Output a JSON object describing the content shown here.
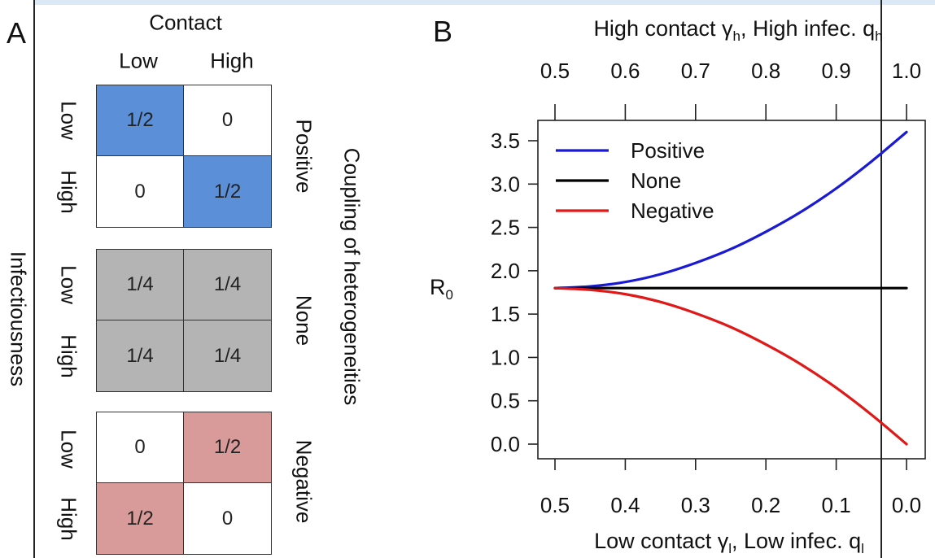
{
  "panel_a": {
    "letter": "A",
    "contact_title": "Contact",
    "col_labels": [
      "Low",
      "High"
    ],
    "row_labels": [
      "Low",
      "High"
    ],
    "left_label": "Infectiousness",
    "right_label": "Coupling of heterogeneities",
    "matrices": [
      {
        "name": "Positive",
        "cells": [
          "1/2",
          "0",
          "0",
          "1/2"
        ],
        "colors": [
          "#5b8fd8",
          "#ffffff",
          "#ffffff",
          "#5b8fd8"
        ]
      },
      {
        "name": "None",
        "cells": [
          "1/4",
          "1/4",
          "1/4",
          "1/4"
        ],
        "colors": [
          "#b4b4b4",
          "#b4b4b4",
          "#b4b4b4",
          "#b4b4b4"
        ]
      },
      {
        "name": "Negative",
        "cells": [
          "0",
          "1/2",
          "1/2",
          "0"
        ],
        "colors": [
          "#ffffff",
          "#d99a9a",
          "#d99a9a",
          "#ffffff"
        ]
      }
    ]
  },
  "panel_b": {
    "letter": "B",
    "top_axis_label": "High contact γ",
    "top_axis_sub": "h",
    "top_axis_label2": ", High infec. q",
    "top_axis_sub2": "h",
    "bottom_axis_label": "Low contact γ",
    "bottom_axis_sub": "l",
    "bottom_axis_label2": ", Low infec. q",
    "bottom_axis_sub2": "l",
    "ylabel": "R",
    "ylabel_sub": "0"
  },
  "chart_data": {
    "type": "line",
    "x_bottom_ticks": [
      "0.5",
      "0.4",
      "0.3",
      "0.2",
      "0.1",
      "0.0"
    ],
    "x_top_ticks": [
      "0.5",
      "0.6",
      "0.7",
      "0.8",
      "0.9",
      "1.0"
    ],
    "y_ticks": [
      "0.0",
      "0.5",
      "1.0",
      "1.5",
      "2.0",
      "2.5",
      "3.0",
      "3.5"
    ],
    "xlim": [
      0.5,
      0.0
    ],
    "ylim": [
      -0.08,
      3.72
    ],
    "x": [
      0.5,
      0.45,
      0.4,
      0.35,
      0.3,
      0.25,
      0.2,
      0.15,
      0.1,
      0.05,
      0.0
    ],
    "series": [
      {
        "name": "Positive",
        "color": "#1a1ad6",
        "values": [
          1.8,
          1.82,
          1.87,
          1.96,
          2.09,
          2.25,
          2.45,
          2.68,
          2.95,
          3.26,
          3.6
        ]
      },
      {
        "name": "None",
        "color": "#000000",
        "values": [
          1.8,
          1.8,
          1.8,
          1.8,
          1.8,
          1.8,
          1.8,
          1.8,
          1.8,
          1.8,
          1.8
        ]
      },
      {
        "name": "Negative",
        "color": "#e01818",
        "values": [
          1.8,
          1.78,
          1.73,
          1.64,
          1.51,
          1.35,
          1.15,
          0.92,
          0.65,
          0.34,
          0.0
        ]
      }
    ],
    "legend_position": "top-left"
  }
}
